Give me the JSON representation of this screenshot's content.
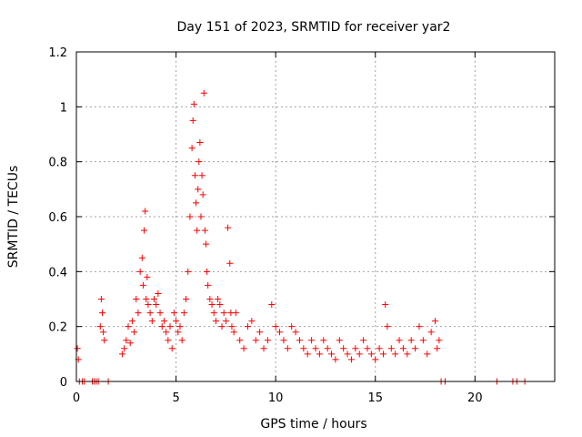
{
  "chart_data": {
    "type": "scatter",
    "title": "Day 151 of 2023, SRMTID for receiver yar2",
    "xlabel": "GPS time / hours",
    "ylabel": "SRMTID / TECUs",
    "xlim": [
      0,
      24
    ],
    "ylim": [
      0,
      1.2
    ],
    "xticks": [
      0,
      5,
      10,
      15,
      20
    ],
    "xtick_labels": [
      "0",
      "5",
      "10",
      "15",
      "20"
    ],
    "yticks": [
      0,
      0.2,
      0.4,
      0.6,
      0.8,
      1.0,
      1.2
    ],
    "ytick_labels": [
      "0",
      "0.2",
      "0.4",
      "0.6",
      "0.8",
      "1",
      "1.2"
    ],
    "grid": true,
    "marker": "+",
    "color": "#ff0000",
    "series": [
      {
        "name": "SRMTID",
        "x": [
          0.05,
          0.1,
          0.15,
          0.3,
          0.4,
          0.8,
          0.9,
          1.0,
          1.1,
          1.2,
          1.25,
          1.3,
          1.35,
          1.4,
          1.6,
          2.3,
          2.4,
          2.5,
          2.6,
          2.7,
          2.8,
          2.9,
          3.0,
          3.1,
          3.2,
          3.3,
          3.35,
          3.4,
          3.45,
          3.5,
          3.55,
          3.6,
          3.7,
          3.8,
          3.9,
          4.0,
          4.1,
          4.2,
          4.3,
          4.4,
          4.5,
          4.6,
          4.7,
          4.8,
          4.9,
          5.0,
          5.1,
          5.2,
          5.3,
          5.4,
          5.5,
          5.6,
          5.7,
          5.8,
          5.85,
          5.9,
          5.95,
          6.0,
          6.05,
          6.1,
          6.15,
          6.2,
          6.25,
          6.3,
          6.35,
          6.4,
          6.45,
          6.5,
          6.55,
          6.6,
          6.7,
          6.8,
          6.9,
          7.0,
          7.1,
          7.2,
          7.3,
          7.4,
          7.5,
          7.6,
          7.7,
          7.75,
          7.8,
          7.9,
          8.0,
          8.2,
          8.4,
          8.6,
          8.8,
          9.0,
          9.2,
          9.4,
          9.6,
          9.8,
          10.0,
          10.2,
          10.4,
          10.6,
          10.8,
          11.0,
          11.2,
          11.4,
          11.6,
          11.8,
          12.0,
          12.2,
          12.4,
          12.6,
          12.8,
          13.0,
          13.2,
          13.4,
          13.6,
          13.8,
          14.0,
          14.2,
          14.4,
          14.6,
          14.8,
          15.0,
          15.2,
          15.4,
          15.5,
          15.6,
          15.8,
          16.0,
          16.2,
          16.4,
          16.6,
          16.8,
          17.0,
          17.2,
          17.4,
          17.6,
          17.8,
          18.0,
          18.1,
          18.2,
          18.3,
          18.5,
          21.1,
          21.9,
          22.1,
          22.5
        ],
        "y": [
          0.12,
          0.08,
          0.0,
          0.0,
          0.0,
          0.0,
          0.0,
          0.0,
          0.0,
          0.2,
          0.3,
          0.25,
          0.18,
          0.15,
          0.0,
          0.1,
          0.12,
          0.15,
          0.2,
          0.14,
          0.22,
          0.18,
          0.3,
          0.25,
          0.4,
          0.45,
          0.35,
          0.55,
          0.62,
          0.3,
          0.38,
          0.28,
          0.25,
          0.22,
          0.3,
          0.28,
          0.32,
          0.25,
          0.2,
          0.22,
          0.18,
          0.15,
          0.2,
          0.12,
          0.25,
          0.22,
          0.18,
          0.2,
          0.15,
          0.25,
          0.3,
          0.4,
          0.6,
          0.85,
          0.95,
          1.01,
          0.75,
          0.65,
          0.55,
          0.7,
          0.8,
          0.87,
          0.6,
          0.75,
          0.68,
          1.05,
          0.55,
          0.5,
          0.4,
          0.35,
          0.3,
          0.28,
          0.25,
          0.22,
          0.3,
          0.28,
          0.2,
          0.25,
          0.22,
          0.56,
          0.43,
          0.25,
          0.2,
          0.18,
          0.25,
          0.15,
          0.12,
          0.2,
          0.22,
          0.15,
          0.18,
          0.12,
          0.15,
          0.28,
          0.2,
          0.18,
          0.15,
          0.12,
          0.2,
          0.18,
          0.15,
          0.12,
          0.1,
          0.15,
          0.12,
          0.1,
          0.15,
          0.12,
          0.1,
          0.08,
          0.15,
          0.12,
          0.1,
          0.08,
          0.12,
          0.1,
          0.15,
          0.12,
          0.1,
          0.08,
          0.12,
          0.1,
          0.28,
          0.2,
          0.12,
          0.1,
          0.15,
          0.12,
          0.1,
          0.15,
          0.12,
          0.2,
          0.15,
          0.1,
          0.18,
          0.22,
          0.12,
          0.15,
          0.0,
          0.0,
          0.0,
          0.0,
          0.0,
          0.0
        ]
      }
    ]
  }
}
